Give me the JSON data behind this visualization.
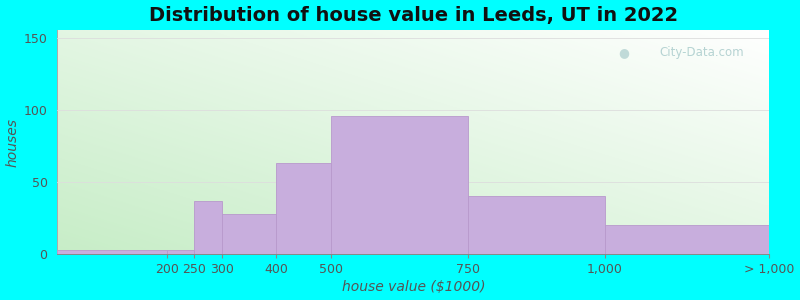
{
  "title": "Distribution of house value in Leeds, UT in 2022",
  "xlabel": "house value ($1000)",
  "ylabel": "houses",
  "bar_color": "#c8aedd",
  "bar_edgecolor": "#b899cc",
  "background_color": "#00ffff",
  "ylim": [
    0,
    155
  ],
  "yticks": [
    0,
    50,
    100,
    150
  ],
  "tick_labels_x": [
    "200",
    "250",
    "300",
    "400",
    "500",
    "750",
    "1,000",
    "> 1,000"
  ],
  "bar_heights": [
    3,
    3,
    37,
    28,
    63,
    96,
    40,
    20
  ],
  "title_fontsize": 14,
  "axis_label_fontsize": 10,
  "tick_fontsize": 9,
  "watermark_text": "City-Data.com",
  "grid_color": "#dddddd",
  "bg_colors_left": "#b8e8c0",
  "bg_colors_right": "#f0fff8"
}
